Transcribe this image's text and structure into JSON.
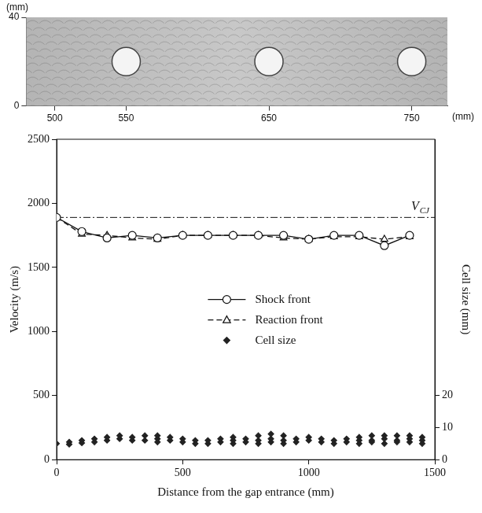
{
  "chart_data": [
    {
      "type": "image",
      "xlabel": "(mm)",
      "ylabel": "(mm)",
      "xlim": [
        480,
        775
      ],
      "xticks": [
        500,
        550,
        650,
        750
      ],
      "ylim": [
        0,
        40
      ],
      "yticks": [
        0,
        40
      ],
      "holes_x": [
        550,
        650,
        750
      ],
      "color": "#b4b4b4"
    },
    {
      "type": "line",
      "xlabel": "Distance from the gap entrance (mm)",
      "ylabel": "Velocity (m/s)",
      "y2label": "Cell size (mm)",
      "xlim": [
        0,
        1500
      ],
      "xticks": [
        0,
        500,
        1000,
        1500
      ],
      "ylim": [
        0,
        2500
      ],
      "yticks": [
        0,
        500,
        1000,
        1500,
        2000,
        2500
      ],
      "y2lim": [
        0,
        100
      ],
      "y2ticks": [
        0,
        10,
        20
      ],
      "grid": false,
      "legend": "center",
      "annotations": [
        {
          "y": 1890,
          "text": "V",
          "subscript": "CJ",
          "line_style": "dashdot"
        }
      ],
      "series": [
        {
          "name": "Shock front",
          "type": "line",
          "marker": "circle",
          "line_style": "solid",
          "color": "#111111",
          "x": [
            0,
            100,
            200,
            300,
            400,
            500,
            600,
            700,
            800,
            900,
            1000,
            1100,
            1200,
            1300,
            1400
          ],
          "values": [
            1890,
            1780,
            1730,
            1750,
            1730,
            1750,
            1750,
            1750,
            1750,
            1750,
            1720,
            1750,
            1750,
            1670,
            1750
          ]
        },
        {
          "name": "Reaction front",
          "type": "line",
          "marker": "triangle",
          "line_style": "dashed",
          "color": "#111111",
          "x": [
            0,
            100,
            200,
            300,
            400,
            500,
            600,
            700,
            800,
            900,
            1000,
            1100,
            1200,
            1300,
            1400
          ],
          "values": [
            1890,
            1760,
            1750,
            1730,
            1720,
            1750,
            1750,
            1750,
            1750,
            1730,
            1720,
            1740,
            1740,
            1720,
            1740
          ]
        },
        {
          "name": "Cell size",
          "type": "scatter",
          "axis": "y2",
          "marker": "diamond",
          "color": "#222222",
          "x": [
            0,
            50,
            50,
            100,
            100,
            150,
            150,
            200,
            200,
            250,
            250,
            300,
            300,
            350,
            350,
            400,
            400,
            400,
            450,
            450,
            500,
            500,
            550,
            550,
            600,
            600,
            650,
            650,
            700,
            700,
            700,
            750,
            750,
            800,
            800,
            800,
            850,
            850,
            850,
            900,
            900,
            900,
            950,
            950,
            1000,
            1000,
            1050,
            1050,
            1100,
            1100,
            1150,
            1150,
            1200,
            1200,
            1200,
            1250,
            1250,
            1250,
            1300,
            1300,
            1300,
            1350,
            1350,
            1350,
            1400,
            1400,
            1400,
            1450,
            1450,
            1450
          ],
          "values": [
            5.0,
            4.8,
            5.5,
            5.2,
            6.0,
            5.5,
            6.5,
            6.0,
            7.0,
            6.5,
            7.5,
            6.0,
            7.0,
            7.5,
            6.0,
            7.5,
            6.5,
            5.5,
            7.0,
            6.0,
            6.5,
            5.5,
            6.0,
            5.0,
            5.0,
            6.0,
            5.5,
            6.5,
            6.0,
            7.0,
            5.0,
            6.5,
            5.5,
            7.5,
            6.0,
            5.0,
            8.0,
            6.5,
            5.5,
            7.5,
            6.0,
            5.0,
            6.5,
            5.5,
            7.0,
            6.0,
            6.5,
            5.5,
            6.0,
            5.0,
            6.5,
            5.5,
            7.0,
            6.0,
            5.0,
            7.5,
            6.0,
            5.5,
            7.5,
            6.5,
            5.0,
            7.5,
            6.0,
            5.5,
            7.5,
            6.5,
            5.5,
            7.0,
            6.0,
            5.0
          ]
        }
      ]
    }
  ]
}
